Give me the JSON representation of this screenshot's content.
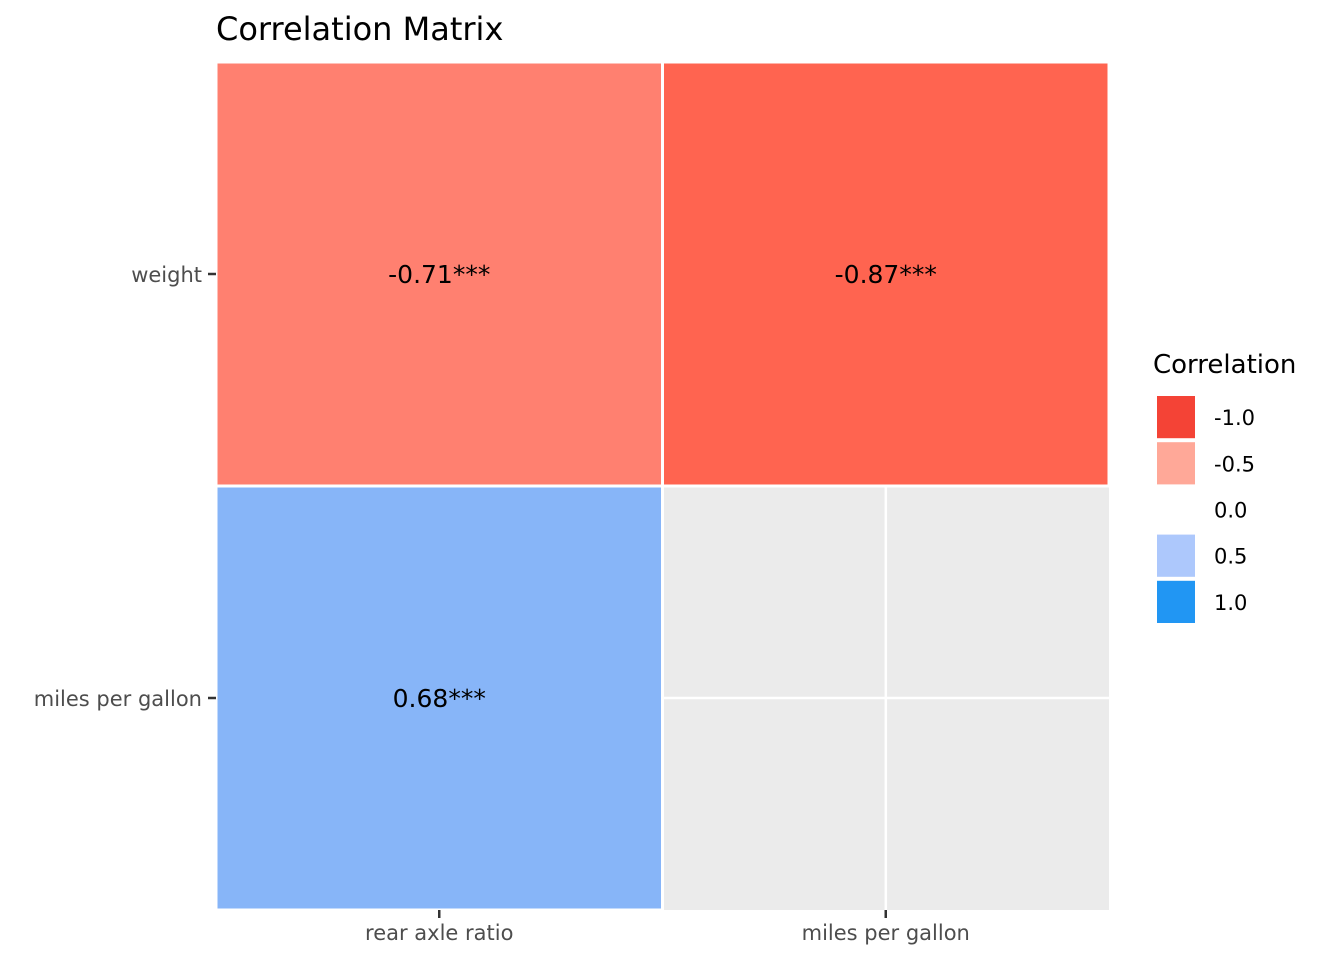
{
  "chart_data": {
    "type": "heatmap",
    "title": "Correlation Matrix",
    "x_categories": [
      "rear axle ratio",
      "miles per gallon"
    ],
    "y_categories": [
      "weight",
      "miles per gallon"
    ],
    "cells": [
      {
        "x": "rear axle ratio",
        "y": "weight",
        "value": -0.71,
        "label": "-0.71***",
        "color": "#ff8070"
      },
      {
        "x": "miles per gallon",
        "y": "weight",
        "value": -0.87,
        "label": "-0.87***",
        "color": "#ff6450"
      },
      {
        "x": "rear axle ratio",
        "y": "miles per gallon",
        "value": 0.68,
        "label": "0.68***",
        "color": "#87b5f8"
      }
    ],
    "panel_background": "#ebebeb",
    "grid": true,
    "legend": {
      "title": "Correlation",
      "placement": "right",
      "items": [
        {
          "label": "-1.0",
          "color": "#f44336"
        },
        {
          "label": "-0.5",
          "color": "#ffa898"
        },
        {
          "label": "0.0",
          "color": "#ffffff"
        },
        {
          "label": "0.5",
          "color": "#adc8fc"
        },
        {
          "label": "1.0",
          "color": "#2196f3"
        }
      ]
    }
  }
}
